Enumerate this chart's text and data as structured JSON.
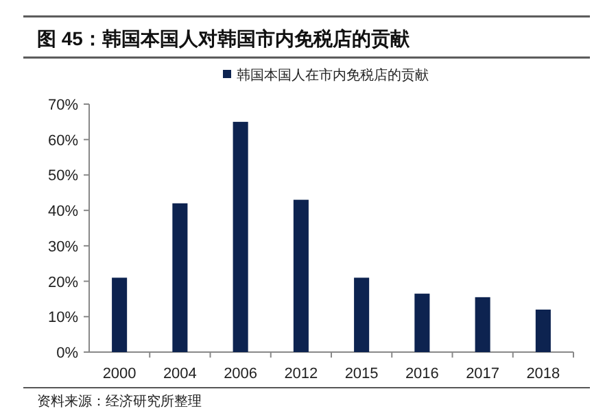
{
  "chart_data": {
    "type": "bar",
    "title": "图 45：韩国本国人对韩国市内免税店的贡献",
    "categories": [
      "2000",
      "2004",
      "2006",
      "2012",
      "2015",
      "2016",
      "2017",
      "2018"
    ],
    "series": [
      {
        "name": "韩国本国人在市内免税店的贡献",
        "color": "#0d2350",
        "values": [
          21,
          42,
          65,
          43,
          21,
          16.5,
          15.5,
          12
        ]
      }
    ],
    "ylim": [
      0,
      70
    ],
    "yticks": [
      {
        "value": 0,
        "label": "0%"
      },
      {
        "value": 10,
        "label": "10%"
      },
      {
        "value": 20,
        "label": "20%"
      },
      {
        "value": 30,
        "label": "30%"
      },
      {
        "value": 40,
        "label": "40%"
      },
      {
        "value": 50,
        "label": "50%"
      },
      {
        "value": 60,
        "label": "60%"
      },
      {
        "value": 70,
        "label": "70%"
      }
    ],
    "legend": "top",
    "grid": false,
    "annotations": [
      "资料来源：经济研究所整理"
    ]
  }
}
